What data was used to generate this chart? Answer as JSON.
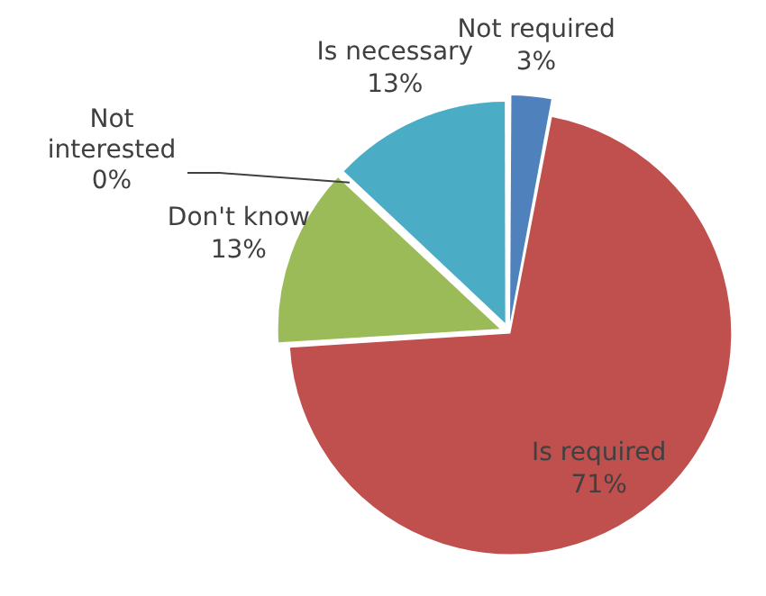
{
  "chart_data": {
    "type": "pie",
    "categories": [
      "Not required",
      "Is required",
      "Don't know",
      "Not interested",
      "Is necessary"
    ],
    "values": [
      3,
      71,
      13,
      0,
      13
    ],
    "colors": [
      "#4f81bd",
      "#c0504d",
      "#9bbb59",
      "#8064a2",
      "#4bacc6"
    ],
    "value_labels": [
      "3%",
      "71%",
      "13%",
      "0%",
      "13%"
    ],
    "legend": false
  }
}
